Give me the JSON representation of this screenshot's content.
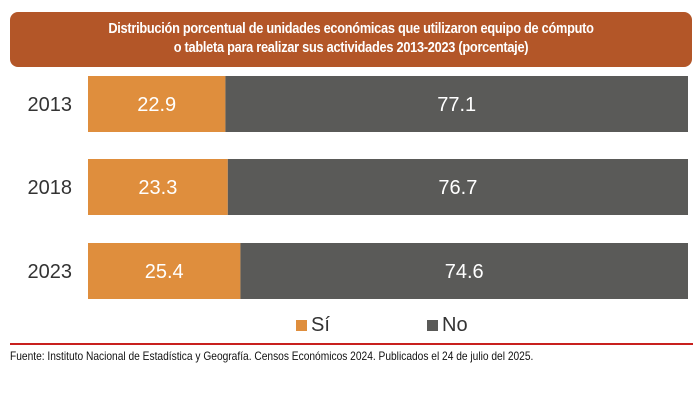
{
  "chart_data": {
    "type": "bar",
    "orientation": "horizontal",
    "stacked": true,
    "title": "Distribución porcentual de unidades económicas que utilizaron equipo de cómputo o tableta para realizar sus actividades 2013-2023 (porcentaje)",
    "title_lines": [
      "Distribución porcentual de unidades económicas que utilizaron equipo de cómputo",
      "o tableta para realizar sus actividades 2013-2023 (porcentaje)"
    ],
    "categories": [
      "2013",
      "2018",
      "2023"
    ],
    "series": [
      {
        "name": "Sí",
        "values": [
          22.9,
          23.3,
          25.4
        ],
        "color": "#df8e3d"
      },
      {
        "name": "No",
        "values": [
          77.1,
          76.7,
          74.6
        ],
        "color": "#5a5a58"
      }
    ],
    "xlim": [
      0,
      100
    ],
    "xlabel": "",
    "ylabel": "",
    "grid": false,
    "legend_position": "bottom"
  },
  "footer": {
    "source": "Fuente: Instituto Nacional de Estadística y Geografía. Censos Económicos 2024. Publicados el 24 de julio del 2025."
  },
  "colors": {
    "title_bg": "#b35628",
    "rule": "#c8201e"
  }
}
